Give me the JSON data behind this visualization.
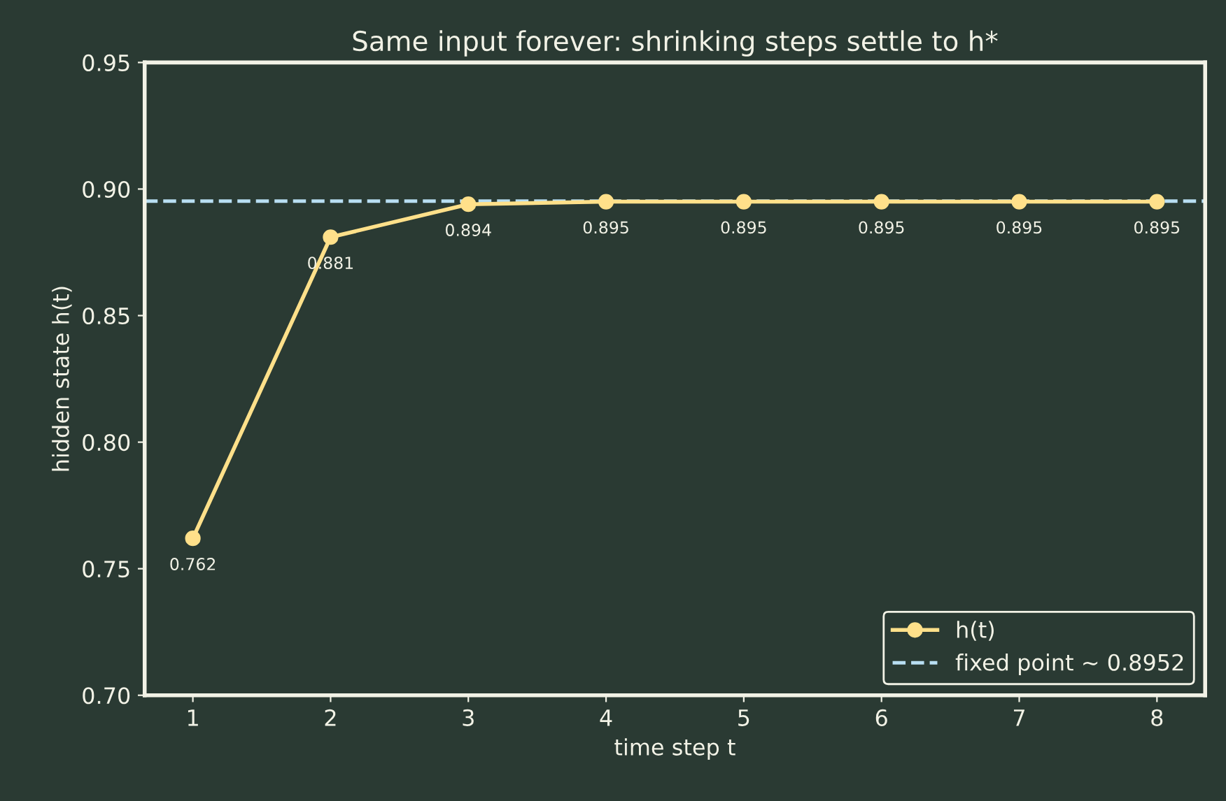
{
  "chart_data": {
    "type": "line",
    "title": "Same input forever: shrinking steps settle to h*",
    "xlabel": "time step t",
    "ylabel": "hidden state h(t)",
    "x": [
      1,
      2,
      3,
      4,
      5,
      6,
      7,
      8
    ],
    "series": [
      {
        "name": "h(t)",
        "color": "#ffe08a",
        "values": [
          0.762,
          0.881,
          0.894,
          0.895,
          0.895,
          0.895,
          0.895,
          0.895
        ]
      }
    ],
    "ref_lines": [
      {
        "axis": "y",
        "value": 0.8952,
        "label": "fixed point ~ 0.8952",
        "color": "#b8def2",
        "line_style": "dashed"
      }
    ],
    "xlim": [
      0.65,
      8.35
    ],
    "xticks": [
      1,
      2,
      3,
      4,
      5,
      6,
      7,
      8
    ],
    "ylim": [
      0.7,
      0.95
    ],
    "yticks": [
      {
        "value": 0.7,
        "label": "0.70"
      },
      {
        "value": 0.75,
        "label": "0.75"
      },
      {
        "value": 0.8,
        "label": "0.80"
      },
      {
        "value": 0.85,
        "label": "0.85"
      },
      {
        "value": 0.9,
        "label": "0.90"
      },
      {
        "value": 0.95,
        "label": "0.95"
      }
    ],
    "data_labels": true,
    "legend": "bottom right",
    "marker": "circle",
    "line_style": "solid",
    "grid": false
  }
}
